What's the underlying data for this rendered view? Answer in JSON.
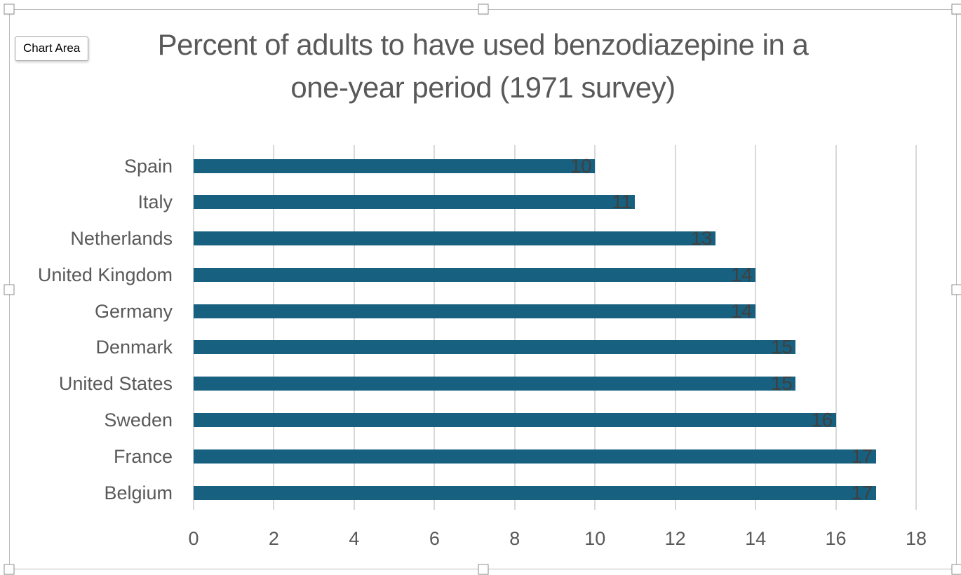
{
  "app": {
    "tooltip": "Chart Area"
  },
  "chart_data": {
    "type": "bar",
    "orientation": "horizontal",
    "title": "Percent of adults to have used benzodiazepine in a one-year period (1971 survey)",
    "title_lines": [
      "Percent of adults to have used benzodiazepine in a",
      "one-year period (1971 survey)"
    ],
    "categories": [
      "Spain",
      "Italy",
      "Netherlands",
      "United Kingdom",
      "Germany",
      "Denmark",
      "United States",
      "Sweden",
      "France",
      "Belgium"
    ],
    "values": [
      10,
      11,
      13,
      14,
      14,
      15,
      15,
      16,
      17,
      17
    ],
    "data_labels": [
      "10",
      "11",
      "13",
      "14",
      "14",
      "15",
      "15",
      "16",
      "17",
      "17"
    ],
    "data_label_position": "inside-end",
    "x_axis": {
      "min": 0,
      "max": 18,
      "tick_interval": 2,
      "tick_labels": [
        "0",
        "2",
        "4",
        "6",
        "8",
        "10",
        "12",
        "14",
        "16",
        "18"
      ]
    },
    "y_axis": {
      "order_top_to_bottom": [
        "Spain",
        "Italy",
        "Netherlands",
        "United Kingdom",
        "Germany",
        "Denmark",
        "United States",
        "Sweden",
        "France",
        "Belgium"
      ]
    },
    "grid": true,
    "legend": "none",
    "colors": {
      "bar": "#18607F",
      "title_text": "#595959",
      "axis_text": "#595959",
      "data_label_text": "#404040",
      "gridline": "#D9D9D9"
    }
  },
  "selection": {
    "handles": [
      "top-left",
      "top-middle",
      "top-right",
      "left-middle",
      "right-middle",
      "bottom-left",
      "bottom-middle",
      "bottom-right"
    ]
  }
}
